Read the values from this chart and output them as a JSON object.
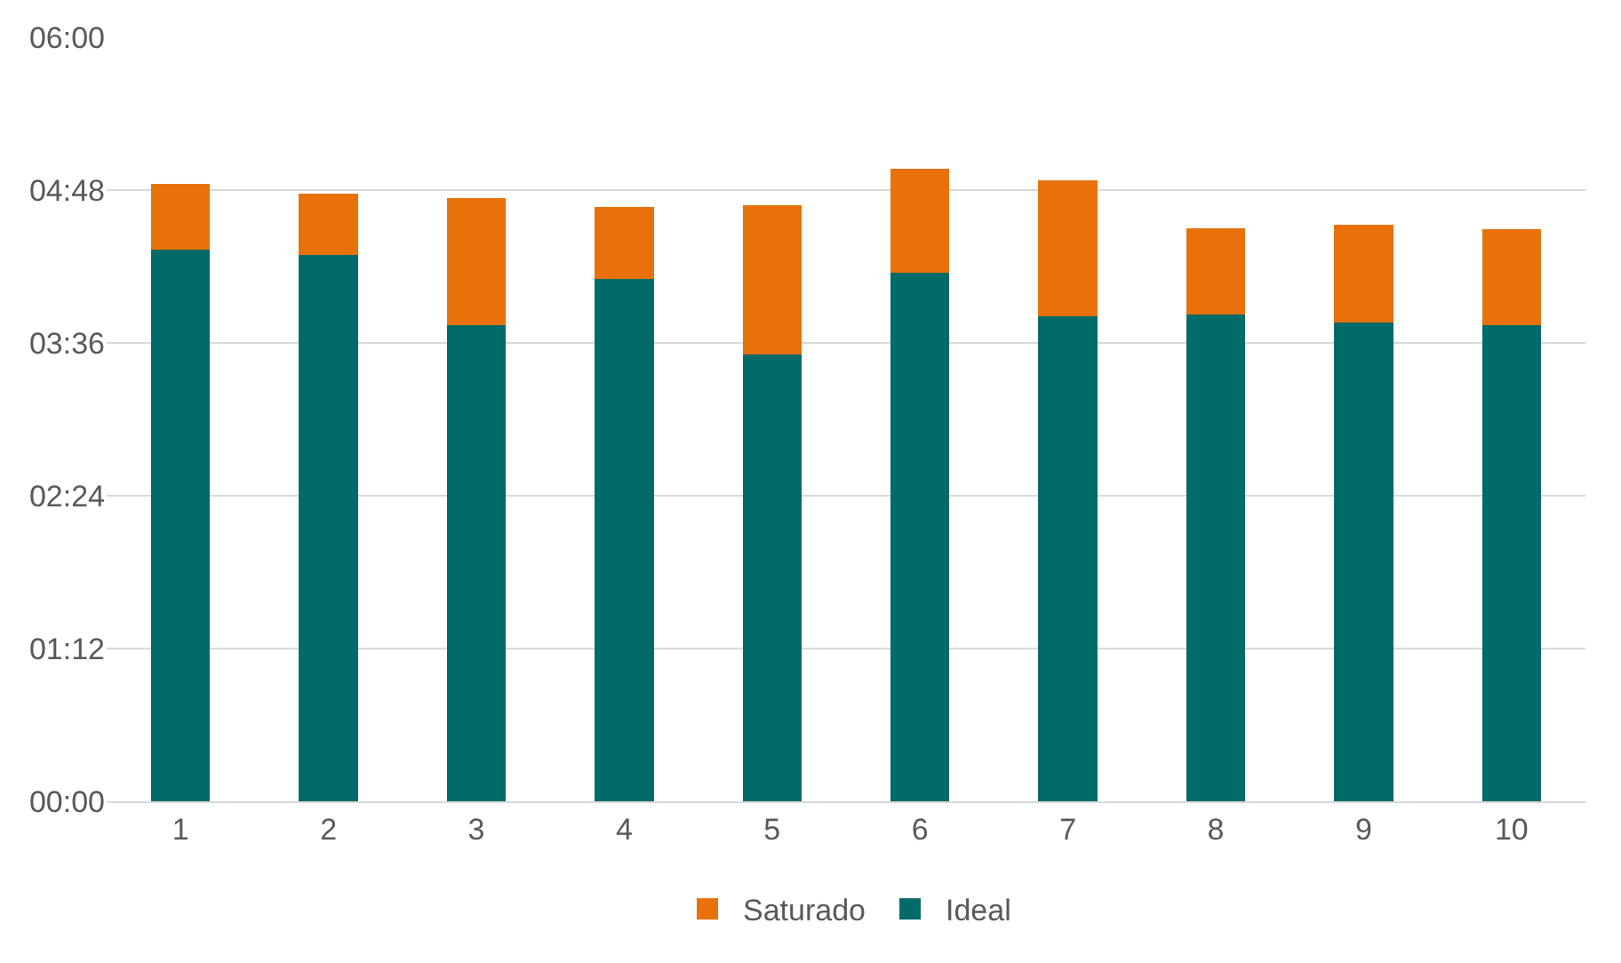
{
  "chart_data": {
    "type": "bar",
    "stacked": true,
    "categories": [
      "1",
      "2",
      "3",
      "4",
      "5",
      "6",
      "7",
      "8",
      "9",
      "10"
    ],
    "series": [
      {
        "name": "Ideal",
        "color": "#006b68",
        "values": [
          4.33,
          4.29,
          3.74,
          4.1,
          3.51,
          4.15,
          3.81,
          3.82,
          3.76,
          3.74
        ]
      },
      {
        "name": "Saturado",
        "color": "#e8710a",
        "values": [
          0.52,
          0.48,
          1.0,
          0.57,
          1.17,
          0.82,
          1.07,
          0.68,
          0.77,
          0.75
        ]
      }
    ],
    "ylim": [
      0,
      6
    ],
    "yticks": [
      {
        "value": 0,
        "label": "00:00"
      },
      {
        "value": 1.2,
        "label": "01:12"
      },
      {
        "value": 2.4,
        "label": "02:24"
      },
      {
        "value": 3.6,
        "label": "03:36"
      },
      {
        "value": 4.8,
        "label": "04:48"
      },
      {
        "value": 6,
        "label": "06:00"
      }
    ],
    "grid": "y",
    "legend": "bottom"
  }
}
